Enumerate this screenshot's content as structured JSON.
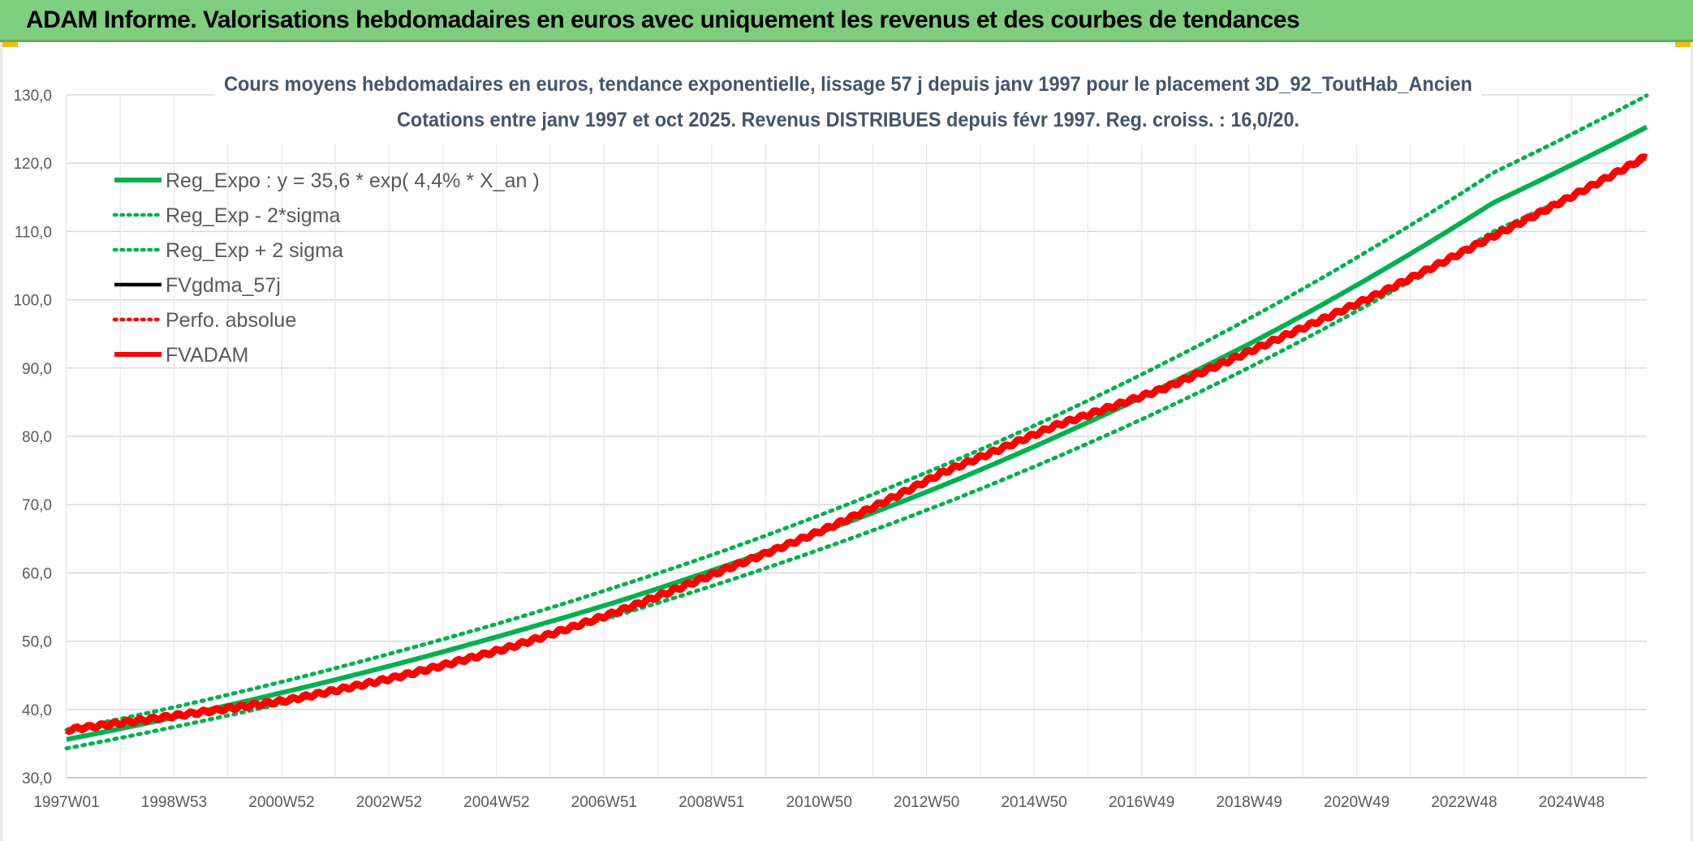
{
  "header": {
    "title": "ADAM Informe. Valorisations hebdomadaires en euros avec uniquement les revenus et des courbes de tendances"
  },
  "colors": {
    "banner": "#7fce7f",
    "trend": "#00b050",
    "perf": "#ff0000",
    "grid": "#d9d9d9",
    "title_text": "#44546a",
    "axis_text": "#595959"
  },
  "chart_data": {
    "type": "line",
    "title_line1": "Cours moyens hebdomadaires en euros, tendance exponentielle, lissage 57 j depuis janv 1997 pour le placement 3D_92_ToutHab_Ancien",
    "title_line2": "Cotations entre janv 1997 et oct 2025. Revenus DISTRIBUES depuis févr 1997. Reg. croiss. : 16,0/20.",
    "x_tick_labels": [
      "1997W01",
      "1998W53",
      "2000W52",
      "2002W52",
      "2004W52",
      "2006W51",
      "2008W51",
      "2010W50",
      "2012W50",
      "2014W50",
      "2016W49",
      "2018W49",
      "2020W49",
      "2022W48",
      "2024W48"
    ],
    "x_range": [
      "1997W01",
      "2025W43"
    ],
    "y_tick_labels": [
      "30,0",
      "40,0",
      "50,0",
      "60,0",
      "70,0",
      "80,0",
      "90,0",
      "100,0",
      "110,0",
      "120,0",
      "130,0"
    ],
    "ylim": [
      30,
      130
    ],
    "grid": true,
    "legend_position": "top-left",
    "legend": [
      {
        "label": "Reg_Expo : y = 35,6 * exp( 4,4% *  X_an )",
        "color": "#00b050",
        "style": "solid-thick"
      },
      {
        "label": "Reg_Exp - 2*sigma",
        "color": "#00b050",
        "style": "dotted"
      },
      {
        "label": "Reg_Exp + 2 sigma",
        "color": "#00b050",
        "style": "dotted"
      },
      {
        "label": "FVgdma_57j",
        "color": "#000000",
        "style": "solid"
      },
      {
        "label": "Perfo. absolue",
        "color": "#ff0000",
        "style": "dotted"
      },
      {
        "label": "FVADAM",
        "color": "#ff0000",
        "style": "solid-thick"
      }
    ],
    "series": [
      {
        "name": "Reg_Expo : y = 35,6 * exp( 4,4% *  X_an )",
        "x_years": [
          0,
          2,
          4,
          6,
          8,
          10,
          12,
          14,
          16,
          18,
          20,
          22,
          24,
          26,
          28.8
        ],
        "values": [
          35.6,
          38.9,
          42.6,
          46.6,
          51.0,
          55.7,
          61.0,
          66.7,
          72.9,
          79.8,
          87.3,
          95.4,
          104.4,
          114.2,
          125.3
        ]
      },
      {
        "name": "Reg_Exp - 2*sigma",
        "x_years": [
          0,
          2,
          4,
          6,
          8,
          10,
          12,
          14,
          16,
          18,
          20,
          22,
          24,
          26,
          28.8
        ],
        "values": [
          34.3,
          37.5,
          41.0,
          44.9,
          49.1,
          53.7,
          58.7,
          64.2,
          70.2,
          76.8,
          84.0,
          91.9,
          100.5,
          110.0,
          120.6
        ]
      },
      {
        "name": "Reg_Exp + 2 sigma",
        "x_years": [
          0,
          2,
          4,
          6,
          8,
          10,
          12,
          14,
          16,
          18,
          20,
          22,
          24,
          26,
          28.8
        ],
        "values": [
          37.0,
          40.4,
          44.2,
          48.4,
          52.9,
          57.9,
          63.3,
          69.3,
          75.8,
          82.9,
          90.7,
          99.2,
          108.5,
          118.6,
          129.9
        ]
      },
      {
        "name": "FVADAM",
        "x_years": [
          0,
          2,
          4,
          6,
          8,
          10,
          12,
          14,
          16,
          18,
          20,
          22,
          24,
          26,
          28.8
        ],
        "values": [
          37.0,
          39.1,
          41.3,
          44.7,
          48.9,
          54.2,
          60.5,
          67.0,
          74.8,
          81.5,
          87.0,
          94.0,
          101.2,
          109.3,
          121.0
        ]
      }
    ]
  }
}
